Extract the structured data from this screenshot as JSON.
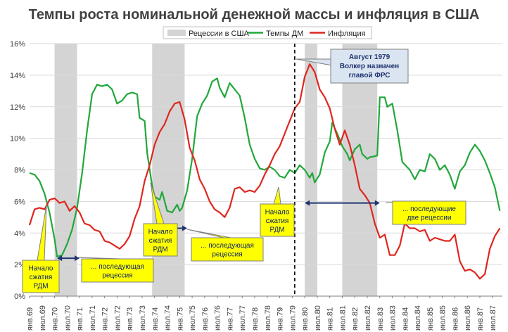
{
  "chart_data": {
    "type": "line",
    "title": "Темпы роста номинальной денежной массы и инфляция в США",
    "legend": {
      "placement": "top",
      "items": [
        {
          "label": "Рецессии в США",
          "kind": "band",
          "color": "#d4d4d4"
        },
        {
          "label": "Темпы ДМ",
          "kind": "line",
          "color": "#21a83b"
        },
        {
          "label": "Инфляция",
          "kind": "line",
          "color": "#e0261f"
        }
      ]
    },
    "ylim": [
      0,
      16
    ],
    "yticks": [
      0,
      2,
      4,
      6,
      8,
      10,
      12,
      14,
      16
    ],
    "ytick_format": "%",
    "x_start": 1969.0,
    "x_end": 1987.9,
    "x_tick_labels": [
      "янв.69",
      "июл.69",
      "янв.70",
      "июл.70",
      "янв.71",
      "июл.71",
      "янв.72",
      "июл.72",
      "янв.73",
      "июл.73",
      "янв.74",
      "июл.74",
      "янв.75",
      "июл.75",
      "янв.76",
      "июл.76",
      "янв.77",
      "июл.77",
      "янв.78",
      "июл.78",
      "янв.79",
      "июл.79",
      "янв.80",
      "июл.80",
      "янв.81",
      "июл.81",
      "янв.82",
      "июл.82",
      "янв.83",
      "июл.83",
      "янв.84",
      "июл.84",
      "янв.85",
      "июл.85",
      "янв.86",
      "июл.86",
      "янв.87",
      "июл.87"
    ],
    "grid": "horizontal",
    "recessions": [
      [
        1970.0,
        1970.9
      ],
      [
        1973.9,
        1975.2
      ],
      [
        1980.0,
        1980.5
      ],
      [
        1981.5,
        1982.9
      ]
    ],
    "series": [
      {
        "name": "Темпы ДМ",
        "color": "#21a83b",
        "points": [
          [
            1969.0,
            7.8
          ],
          [
            1969.2,
            7.7
          ],
          [
            1969.4,
            7.3
          ],
          [
            1969.6,
            6.5
          ],
          [
            1969.8,
            5.3
          ],
          [
            1970.0,
            3.6
          ],
          [
            1970.1,
            2.5
          ],
          [
            1970.3,
            2.6
          ],
          [
            1970.5,
            3.3
          ],
          [
            1970.7,
            4.2
          ],
          [
            1970.9,
            5.6
          ],
          [
            1971.1,
            7.8
          ],
          [
            1971.3,
            10.5
          ],
          [
            1971.5,
            12.8
          ],
          [
            1971.7,
            13.4
          ],
          [
            1971.9,
            13.3
          ],
          [
            1972.1,
            13.4
          ],
          [
            1972.3,
            13.1
          ],
          [
            1972.5,
            12.2
          ],
          [
            1972.7,
            12.4
          ],
          [
            1972.9,
            12.8
          ],
          [
            1973.1,
            12.9
          ],
          [
            1973.3,
            12.8
          ],
          [
            1973.4,
            11.3
          ],
          [
            1973.6,
            11.1
          ],
          [
            1973.7,
            9.1
          ],
          [
            1973.9,
            7.0
          ],
          [
            1974.0,
            6.3
          ],
          [
            1974.2,
            6.1
          ],
          [
            1974.3,
            6.6
          ],
          [
            1974.5,
            5.4
          ],
          [
            1974.7,
            5.3
          ],
          [
            1974.9,
            5.8
          ],
          [
            1975.0,
            5.4
          ],
          [
            1975.1,
            5.6
          ],
          [
            1975.3,
            6.7
          ],
          [
            1975.5,
            8.7
          ],
          [
            1975.7,
            11.4
          ],
          [
            1975.9,
            12.2
          ],
          [
            1976.1,
            12.7
          ],
          [
            1976.3,
            13.6
          ],
          [
            1976.5,
            13.8
          ],
          [
            1976.6,
            13.2
          ],
          [
            1976.8,
            12.6
          ],
          [
            1977.0,
            13.5
          ],
          [
            1977.2,
            13.1
          ],
          [
            1977.4,
            12.7
          ],
          [
            1977.6,
            11.3
          ],
          [
            1977.8,
            9.6
          ],
          [
            1978.0,
            8.7
          ],
          [
            1978.2,
            8.1
          ],
          [
            1978.4,
            8.0
          ],
          [
            1978.6,
            8.2
          ],
          [
            1978.8,
            8.0
          ],
          [
            1979.0,
            7.6
          ],
          [
            1979.2,
            7.5
          ],
          [
            1979.4,
            8.0
          ],
          [
            1979.6,
            7.8
          ],
          [
            1979.8,
            8.3
          ],
          [
            1980.0,
            8.0
          ],
          [
            1980.2,
            7.5
          ],
          [
            1980.3,
            7.8
          ],
          [
            1980.4,
            7.2
          ],
          [
            1980.6,
            7.7
          ],
          [
            1980.8,
            9.1
          ],
          [
            1981.0,
            9.8
          ],
          [
            1981.1,
            11.0
          ],
          [
            1981.3,
            10.3
          ],
          [
            1981.5,
            9.5
          ],
          [
            1981.7,
            9.0
          ],
          [
            1981.8,
            8.6
          ],
          [
            1982.0,
            9.3
          ],
          [
            1982.2,
            9.6
          ],
          [
            1982.3,
            9.0
          ],
          [
            1982.5,
            8.7
          ],
          [
            1982.6,
            8.8
          ],
          [
            1982.9,
            8.9
          ],
          [
            1983.0,
            12.6
          ],
          [
            1983.2,
            12.6
          ],
          [
            1983.3,
            12.0
          ],
          [
            1983.5,
            12.2
          ],
          [
            1983.7,
            10.5
          ],
          [
            1983.9,
            8.5
          ],
          [
            1984.2,
            8.0
          ],
          [
            1984.4,
            7.4
          ],
          [
            1984.6,
            8.0
          ],
          [
            1984.8,
            7.9
          ],
          [
            1985.0,
            9.0
          ],
          [
            1985.2,
            8.7
          ],
          [
            1985.4,
            8.0
          ],
          [
            1985.6,
            8.3
          ],
          [
            1985.8,
            7.7
          ],
          [
            1986.0,
            6.8
          ],
          [
            1986.2,
            7.9
          ],
          [
            1986.4,
            8.3
          ],
          [
            1986.6,
            9.1
          ],
          [
            1986.8,
            9.6
          ],
          [
            1987.0,
            9.2
          ],
          [
            1987.2,
            8.6
          ],
          [
            1987.4,
            7.8
          ],
          [
            1987.6,
            6.9
          ],
          [
            1987.8,
            5.4
          ]
        ]
      },
      {
        "name": "Инфляция",
        "color": "#e0261f",
        "points": [
          [
            1969.0,
            4.5
          ],
          [
            1969.2,
            5.5
          ],
          [
            1969.4,
            5.6
          ],
          [
            1969.6,
            5.5
          ],
          [
            1969.8,
            6.1
          ],
          [
            1970.0,
            6.2
          ],
          [
            1970.2,
            5.9
          ],
          [
            1970.4,
            6.0
          ],
          [
            1970.6,
            5.4
          ],
          [
            1970.8,
            5.7
          ],
          [
            1971.0,
            5.3
          ],
          [
            1971.2,
            4.6
          ],
          [
            1971.4,
            4.5
          ],
          [
            1971.6,
            4.2
          ],
          [
            1971.8,
            4.1
          ],
          [
            1972.0,
            3.5
          ],
          [
            1972.2,
            3.4
          ],
          [
            1972.4,
            3.2
          ],
          [
            1972.6,
            3.0
          ],
          [
            1972.8,
            3.3
          ],
          [
            1973.0,
            3.8
          ],
          [
            1973.2,
            4.9
          ],
          [
            1973.4,
            5.7
          ],
          [
            1973.6,
            7.3
          ],
          [
            1973.8,
            8.3
          ],
          [
            1974.0,
            9.6
          ],
          [
            1974.2,
            10.4
          ],
          [
            1974.4,
            10.9
          ],
          [
            1974.6,
            11.7
          ],
          [
            1974.8,
            12.2
          ],
          [
            1975.0,
            12.3
          ],
          [
            1975.2,
            11.2
          ],
          [
            1975.4,
            9.4
          ],
          [
            1975.6,
            8.6
          ],
          [
            1975.8,
            7.4
          ],
          [
            1976.0,
            6.8
          ],
          [
            1976.2,
            6.0
          ],
          [
            1976.4,
            5.5
          ],
          [
            1976.6,
            5.3
          ],
          [
            1976.8,
            5.0
          ],
          [
            1977.0,
            5.6
          ],
          [
            1977.2,
            6.8
          ],
          [
            1977.4,
            6.9
          ],
          [
            1977.6,
            6.6
          ],
          [
            1977.8,
            6.7
          ],
          [
            1978.0,
            6.6
          ],
          [
            1978.2,
            7.0
          ],
          [
            1978.4,
            7.7
          ],
          [
            1978.6,
            8.3
          ],
          [
            1978.8,
            9.0
          ],
          [
            1979.0,
            9.5
          ],
          [
            1979.2,
            10.3
          ],
          [
            1979.4,
            11.1
          ],
          [
            1979.6,
            11.9
          ],
          [
            1979.8,
            12.3
          ],
          [
            1980.0,
            13.9
          ],
          [
            1980.2,
            14.7
          ],
          [
            1980.4,
            14.2
          ],
          [
            1980.6,
            13.1
          ],
          [
            1980.8,
            12.6
          ],
          [
            1981.0,
            11.9
          ],
          [
            1981.2,
            10.6
          ],
          [
            1981.4,
            9.6
          ],
          [
            1981.6,
            10.5
          ],
          [
            1981.8,
            9.6
          ],
          [
            1982.0,
            8.3
          ],
          [
            1982.2,
            6.8
          ],
          [
            1982.4,
            6.4
          ],
          [
            1982.6,
            5.9
          ],
          [
            1982.8,
            4.6
          ],
          [
            1983.0,
            3.7
          ],
          [
            1983.2,
            3.9
          ],
          [
            1983.4,
            2.6
          ],
          [
            1983.6,
            2.6
          ],
          [
            1983.8,
            3.2
          ],
          [
            1984.0,
            4.6
          ],
          [
            1984.2,
            4.3
          ],
          [
            1984.4,
            4.3
          ],
          [
            1984.6,
            4.1
          ],
          [
            1984.8,
            4.2
          ],
          [
            1985.0,
            3.5
          ],
          [
            1985.2,
            3.7
          ],
          [
            1985.4,
            3.6
          ],
          [
            1985.6,
            3.5
          ],
          [
            1985.8,
            3.5
          ],
          [
            1986.0,
            3.9
          ],
          [
            1986.2,
            2.2
          ],
          [
            1986.4,
            1.6
          ],
          [
            1986.6,
            1.7
          ],
          [
            1986.8,
            1.5
          ],
          [
            1987.0,
            1.1
          ],
          [
            1987.2,
            1.4
          ],
          [
            1987.4,
            3.0
          ],
          [
            1987.6,
            3.8
          ],
          [
            1987.8,
            4.3
          ]
        ]
      }
    ],
    "volcker_line_x": 1979.6,
    "annotations": {
      "callout": {
        "lines": [
          "Август 1979",
          "Волкер назначен",
          "главой ФРС"
        ]
      },
      "arrows": [
        {
          "from_x": 1970.1,
          "to_x": 1971.0,
          "y": 2.4
        },
        {
          "from_x": 1973.9,
          "to_x": 1975.3,
          "y": 4.3
        },
        {
          "from_x": 1980.0,
          "to_x": 1983.0,
          "y": 5.9
        }
      ],
      "notes": [
        {
          "lines": [
            "Начало",
            "сжатия",
            "РДМ"
          ]
        },
        {
          "lines": [
            "... последующая",
            "рецессия"
          ]
        },
        {
          "lines": [
            "Начало",
            "сжатия",
            "РДМ"
          ]
        },
        {
          "lines": [
            "... последующая",
            "рецессия"
          ]
        },
        {
          "lines": [
            "Начало",
            "сжатия",
            "РДМ"
          ]
        },
        {
          "lines": [
            "... последующие",
            "две рецессии"
          ]
        }
      ]
    }
  }
}
